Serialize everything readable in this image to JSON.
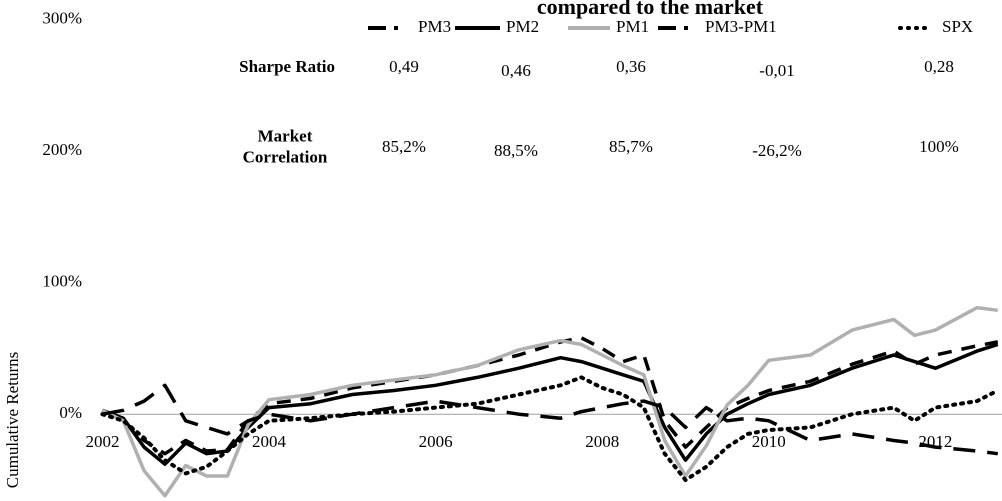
{
  "chart_data": {
    "type": "line",
    "title": "compared to the market",
    "y_label": "Cumulative Returns",
    "x": [
      2002,
      2002.25,
      2002.5,
      2002.75,
      2003,
      2003.25,
      2003.5,
      2003.75,
      2004,
      2004.5,
      2005,
      2005.5,
      2006,
      2006.5,
      2007,
      2007.5,
      2007.75,
      2008,
      2008.25,
      2008.5,
      2008.75,
      2009,
      2009.25,
      2009.5,
      2009.75,
      2010,
      2010.5,
      2011,
      2011.5,
      2011.75,
      2012,
      2012.5,
      2012.75
    ],
    "series": [
      {
        "name": "PM3",
        "color": "#000000",
        "style": "dashed",
        "values": [
          3,
          -5,
          -20,
          -30,
          -20,
          -28,
          -27,
          -5,
          8,
          12,
          20,
          25,
          30,
          37,
          45,
          55,
          58,
          50,
          40,
          45,
          -5,
          -25,
          -10,
          5,
          12,
          18,
          25,
          38,
          48,
          38,
          45,
          52,
          55
        ]
      },
      {
        "name": "PM2",
        "color": "#000000",
        "style": "solid",
        "values": [
          3,
          -3,
          -25,
          -38,
          -22,
          -30,
          -28,
          -10,
          5,
          8,
          15,
          18,
          22,
          28,
          35,
          43,
          40,
          35,
          30,
          25,
          -10,
          -35,
          -15,
          0,
          8,
          15,
          22,
          35,
          45,
          40,
          35,
          48,
          53
        ]
      },
      {
        "name": "PM1",
        "color": "#b0b0b0",
        "style": "solid",
        "values": [
          3,
          -5,
          -43,
          -62,
          -39,
          -47,
          -47,
          -8,
          11,
          15,
          22,
          26,
          30,
          37,
          49,
          56,
          53,
          45,
          37,
          30,
          -20,
          -47,
          -24,
          7,
          22,
          41,
          45,
          64,
          72,
          60,
          64,
          81,
          79
        ]
      },
      {
        "name": "PM3-PM1",
        "color": "#000000",
        "style": "long-dashed",
        "values": [
          0,
          3,
          10,
          22,
          -5,
          -10,
          -15,
          -5,
          0,
          -5,
          0,
          5,
          10,
          5,
          0,
          -3,
          2,
          5,
          8,
          10,
          5,
          -10,
          5,
          -5,
          -3,
          -5,
          -20,
          -15,
          -20,
          -22,
          -25,
          -28,
          -30
        ]
      },
      {
        "name": "SPX",
        "color": "#000000",
        "style": "dotted",
        "values": [
          0,
          -5,
          -18,
          -35,
          -45,
          -40,
          -28,
          -15,
          -5,
          -3,
          0,
          2,
          5,
          8,
          15,
          22,
          28,
          20,
          15,
          5,
          -30,
          -50,
          -40,
          -25,
          -15,
          -12,
          -10,
          0,
          5,
          -5,
          5,
          10,
          18
        ]
      }
    ],
    "xlim": [
      2000.77,
      2012.8
    ],
    "xticks": [
      2002,
      2004,
      2006,
      2008,
      2010,
      2012
    ],
    "ylim": [
      -66,
      315
    ],
    "yticks": [
      {
        "value": 0,
        "label": "0%"
      },
      {
        "value": 100,
        "label": "100%"
      },
      {
        "value": 200,
        "label": "200%"
      },
      {
        "value": 300,
        "label": "300%"
      }
    ],
    "stats_table": {
      "rows": [
        {
          "label": [
            "Sharpe Ratio"
          ],
          "cells": [
            "0,49",
            "0,46",
            "0,36",
            "-0,01",
            "0,28"
          ]
        },
        {
          "label": [
            "Market",
            "Correlation"
          ],
          "cells": [
            "85,2%",
            "88,5%",
            "85,7%",
            "-26,2%",
            "100%"
          ]
        }
      ]
    }
  }
}
